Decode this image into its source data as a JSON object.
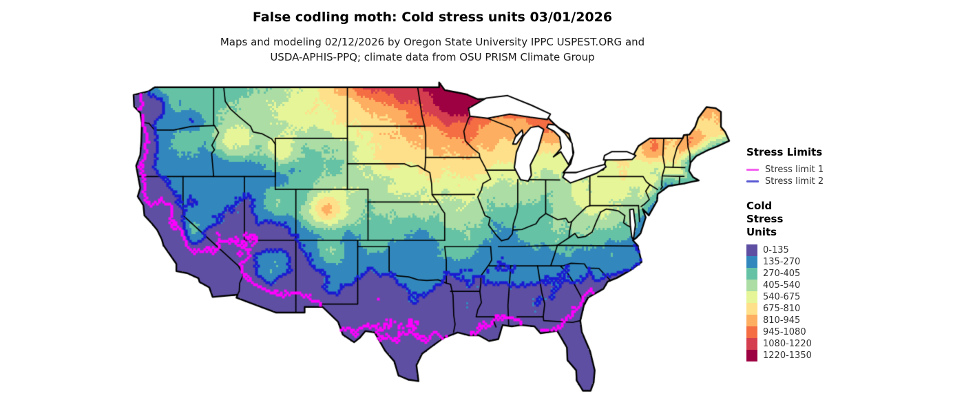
{
  "header": {
    "title": "False codling moth: Cold stress units 03/01/2026",
    "subtitle_line1": "Maps and modeling 02/12/2026 by Oregon State University IPPC USPEST.ORG and",
    "subtitle_line2": "USDA-APHIS-PPQ; climate data from OSU PRISM Climate Group"
  },
  "legend": {
    "stress_limits_title": "Stress Limits",
    "stress_limits": [
      {
        "label": "Stress limit 1",
        "color": "#f35ff0"
      },
      {
        "label": "Stress limit 2",
        "color": "#5a5ad4"
      }
    ],
    "cold_stress_title": "Cold Stress Units",
    "cold_stress_bins": [
      {
        "label": "0-135",
        "color": "#5e4fa2"
      },
      {
        "label": "135-270",
        "color": "#3288bd"
      },
      {
        "label": "270-405",
        "color": "#66c2a5"
      },
      {
        "label": "405-540",
        "color": "#abdda4"
      },
      {
        "label": "540-675",
        "color": "#e6f598"
      },
      {
        "label": "675-810",
        "color": "#fee08b"
      },
      {
        "label": "810-945",
        "color": "#fdae61"
      },
      {
        "label": "945-1080",
        "color": "#f46d43"
      },
      {
        "label": "1080-1220",
        "color": "#d53e4f"
      },
      {
        "label": "1220-1350",
        "color": "#9e0142"
      }
    ]
  },
  "map": {
    "region_label": "Contiguous United States cold stress units raster",
    "background_color": "#ffffff",
    "border_color": "#000000",
    "stress_limit_1_line_color": "#ff00ff",
    "stress_limit_2_line_color": "#1a1ad1",
    "bin_edges": [
      0,
      135,
      270,
      405,
      540,
      675,
      810,
      945,
      1080,
      1220,
      1350
    ]
  }
}
